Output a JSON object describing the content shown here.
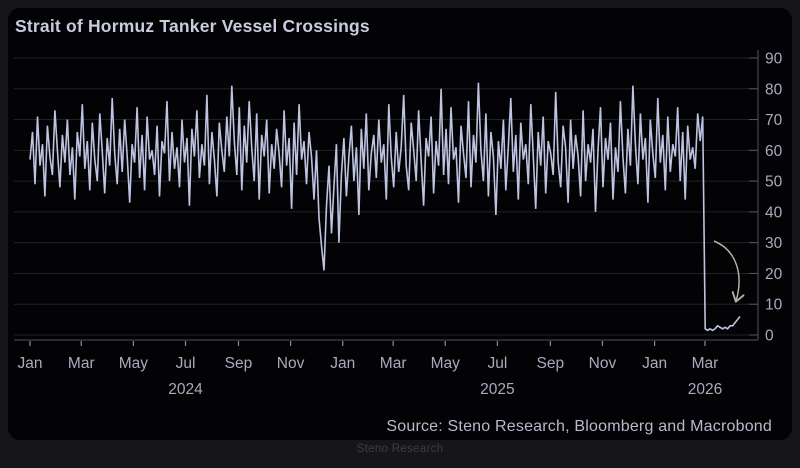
{
  "header": {
    "title": "Strait of Hormuz Tanker Vessel Crossings"
  },
  "footer": {
    "source": "Source: Steno Research, Bloomberg and Macrobond",
    "watermark": "Steno Research"
  },
  "colors": {
    "outer_background": "#161618",
    "card_background": "#030305",
    "title_text": "#c9cce0",
    "series_line": "#bdc3e0",
    "gridline": "#202228",
    "axis_line": "#53555d",
    "tick_mark": "#8b8e99",
    "tick_label": "#a8abbc",
    "source_text": "#b7bacb",
    "watermark_text": "#3d3d40",
    "annotation_arrow": "#b0b0a6"
  },
  "chart_data": {
    "type": "line",
    "title": "Strait of Hormuz Tanker Vessel Crossings",
    "xlabel": "",
    "ylabel": "",
    "x_unit": "days since 2024-01-01 (series sampled ~every 3 days)",
    "x_range_days": [
      0,
      831
    ],
    "ylim": [
      0,
      90
    ],
    "y_ticks": [
      0,
      10,
      20,
      30,
      40,
      50,
      60,
      70,
      80,
      90
    ],
    "grid": "horizontal only",
    "legend": "none",
    "y_axis_side": "right",
    "x_ticks": {
      "days": [
        0,
        60,
        121,
        182,
        244,
        305,
        366,
        425,
        486,
        547,
        609,
        670,
        731,
        790
      ],
      "labels": [
        "Jan",
        "Mar",
        "May",
        "Jul",
        "Sep",
        "Nov",
        "Jan",
        "Mar",
        "May",
        "Jul",
        "Sep",
        "Nov",
        "Jan",
        "Mar"
      ]
    },
    "year_labels": [
      {
        "day": 182,
        "label": "2024"
      },
      {
        "day": 547,
        "label": "2025"
      },
      {
        "day": 790,
        "label": "2026"
      }
    ],
    "annotation": {
      "type": "curved-arrow",
      "meaning": "points at collapse of crossings to near zero around March 2026",
      "points_to_day": 800,
      "points_to_value": 4
    },
    "series": [
      {
        "name": "Tanker vessel crossings per day",
        "summary": "Oscillates roughly 40-80 (mean ~58) Jan 2024 - Feb 2026, brief dip to ~21 in Dec 2024, collapses vertically to ~2 at start of March 2026, stays near 2 then ticks up to ~6 by mid-April 2026",
        "values": [
          57,
          66,
          49,
          71,
          55,
          62,
          45,
          68,
          58,
          52,
          73,
          60,
          48,
          65,
          56,
          70,
          52,
          61,
          44,
          66,
          58,
          75,
          54,
          63,
          47,
          69,
          57,
          50,
          72,
          60,
          46,
          64,
          55,
          77,
          59,
          49,
          67,
          53,
          70,
          58,
          43,
          62,
          56,
          74,
          51,
          65,
          47,
          71,
          57,
          60,
          52,
          68,
          45,
          63,
          59,
          76,
          50,
          66,
          54,
          61,
          48,
          70,
          56,
          64,
          42,
          67,
          58,
          73,
          51,
          62,
          55,
          78,
          49,
          66,
          57,
          45,
          69,
          60,
          53,
          71,
          58,
          81,
          63,
          52,
          74,
          47,
          68,
          56,
          76,
          61,
          50,
          72,
          44,
          65,
          58,
          70,
          46,
          62,
          54,
          67,
          59,
          48,
          73,
          55,
          64,
          41,
          69,
          52,
          75,
          57,
          63,
          49,
          66,
          58,
          44,
          60,
          38,
          29,
          21,
          42,
          55,
          33,
          48,
          62,
          30,
          52,
          64,
          45,
          58,
          68,
          50,
          61,
          39,
          67,
          54,
          72,
          47,
          59,
          65,
          51,
          70,
          56,
          62,
          44,
          75,
          58,
          48,
          66,
          53,
          61,
          78,
          55,
          47,
          69,
          60,
          50,
          73,
          57,
          42,
          64,
          58,
          71,
          46,
          63,
          55,
          80,
          52,
          67,
          49,
          74,
          57,
          61,
          43,
          68,
          59,
          51,
          76,
          48,
          65,
          56,
          82,
          60,
          50,
          72,
          45,
          66,
          58,
          39,
          63,
          54,
          70,
          47,
          61,
          77,
          53,
          65,
          44,
          69,
          57,
          62,
          49,
          75,
          58,
          41,
          66,
          55,
          71,
          46,
          63,
          59,
          52,
          79,
          56,
          48,
          68,
          61,
          43,
          70,
          54,
          65,
          58,
          45,
          73,
          50,
          62,
          56,
          67,
          40,
          60,
          74,
          48,
          64,
          57,
          69,
          44,
          61,
          53,
          76,
          58,
          46,
          67,
          55,
          81,
          62,
          49,
          72,
          57,
          64,
          43,
          70,
          59,
          51,
          77,
          56,
          65,
          47,
          71,
          53,
          62,
          58,
          74,
          50,
          66,
          44,
          68,
          57,
          61,
          54,
          72,
          63,
          71,
          2,
          1.5,
          2,
          1.5,
          2,
          3,
          2.5,
          2,
          2.5,
          2,
          3,
          3,
          4,
          5,
          6
        ]
      }
    ]
  }
}
